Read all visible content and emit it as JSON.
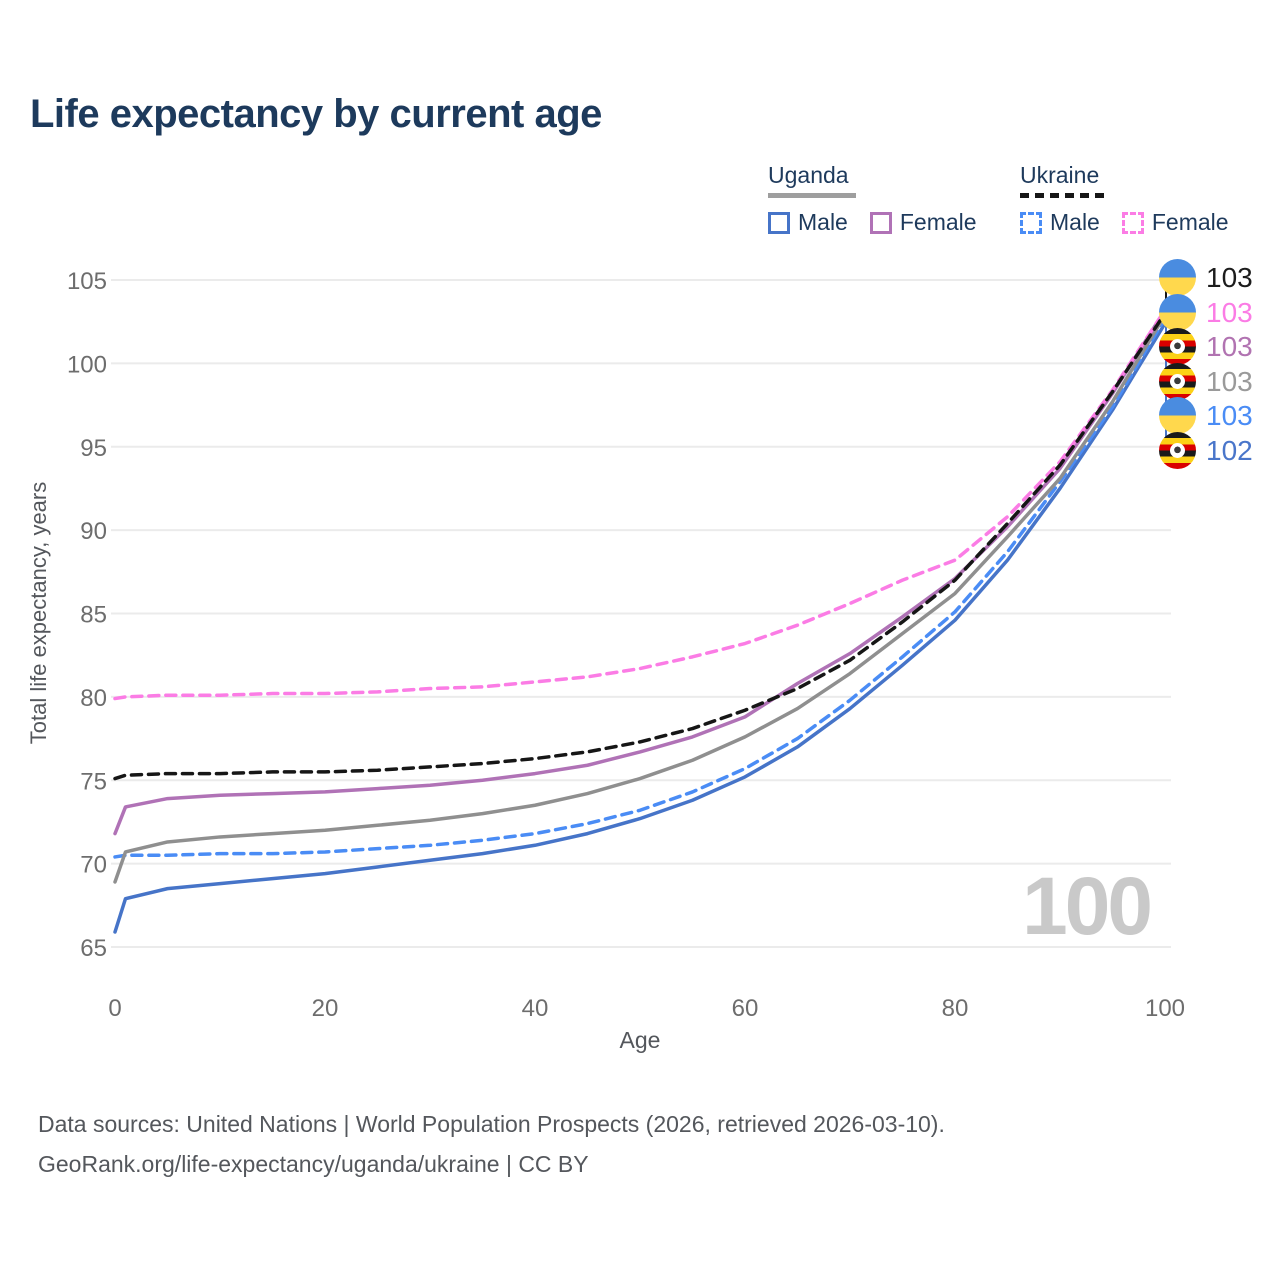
{
  "header": {
    "title": "Life expectancy by current age"
  },
  "legend": {
    "groups": [
      {
        "name": "Uganda",
        "style": "solid",
        "items": [
          {
            "label": "Male",
            "color": "#4674c8"
          },
          {
            "label": "Female",
            "color": "#b072b6"
          }
        ]
      },
      {
        "name": "Ukraine",
        "style": "dashed",
        "items": [
          {
            "label": "Male",
            "color": "#4a8cf5"
          },
          {
            "label": "Female",
            "color": "#fb7ce5"
          }
        ]
      }
    ]
  },
  "flags": {
    "ukraine": {
      "top": "#4a8ce0",
      "bottom": "#ffd84d"
    },
    "uganda": {
      "black": "#1a1a1a",
      "yellow": "#fcd116",
      "red": "#d90000"
    }
  },
  "chart_data": {
    "type": "line",
    "title": "Life expectancy by current age",
    "xlabel": "Age",
    "ylabel": "Total life expectancy, years",
    "xlim": [
      0,
      100
    ],
    "ylim": [
      65,
      105
    ],
    "xticks": [
      0,
      20,
      40,
      60,
      80,
      100
    ],
    "yticks": [
      65,
      70,
      75,
      80,
      85,
      90,
      95,
      100,
      105
    ],
    "grid": "horizontal",
    "legend_position": "top-right",
    "frame_label": "100",
    "x": [
      0,
      1,
      5,
      10,
      15,
      20,
      25,
      30,
      35,
      40,
      45,
      50,
      55,
      60,
      65,
      70,
      75,
      80,
      85,
      90,
      95,
      100
    ],
    "series": [
      {
        "name": "Ukraine Total",
        "country": "Ukraine",
        "sex": "Total",
        "flag": "ukraine",
        "color": "#161616",
        "label_color": "#1c1c1c",
        "dash": "10 7",
        "end_label": "103",
        "values": [
          75.1,
          75.3,
          75.4,
          75.4,
          75.5,
          75.5,
          75.6,
          75.8,
          76.0,
          76.3,
          76.7,
          77.3,
          78.1,
          79.2,
          80.5,
          82.2,
          84.5,
          87.0,
          90.4,
          93.9,
          98.3,
          103.0
        ]
      },
      {
        "name": "Ukraine Female",
        "country": "Ukraine",
        "sex": "Female",
        "flag": "ukraine",
        "color": "#fb7ce5",
        "label_color": "#fb7ce5",
        "dash": "10 7",
        "end_label": "103",
        "values": [
          79.9,
          80.0,
          80.1,
          80.1,
          80.2,
          80.2,
          80.3,
          80.5,
          80.6,
          80.9,
          81.2,
          81.7,
          82.4,
          83.2,
          84.3,
          85.6,
          87.0,
          88.2,
          90.8,
          94.1,
          98.4,
          103.2
        ]
      },
      {
        "name": "Uganda Female",
        "country": "Uganda",
        "sex": "Female",
        "flag": "uganda",
        "color": "#b072b6",
        "label_color": "#b173b1",
        "dash": null,
        "end_label": "103",
        "values": [
          71.8,
          73.4,
          73.9,
          74.1,
          74.2,
          74.3,
          74.5,
          74.7,
          75.0,
          75.4,
          75.9,
          76.7,
          77.6,
          78.8,
          80.8,
          82.6,
          84.8,
          87.1,
          90.2,
          93.7,
          98.2,
          103.2
        ]
      },
      {
        "name": "Uganda Total",
        "country": "Uganda",
        "sex": "Total",
        "flag": "uganda",
        "color": "#8f8f8f",
        "label_color": "#9a9a9a",
        "dash": null,
        "end_label": "103",
        "values": [
          68.9,
          70.7,
          71.3,
          71.6,
          71.8,
          72.0,
          72.3,
          72.6,
          73.0,
          73.5,
          74.2,
          75.1,
          76.2,
          77.6,
          79.3,
          81.4,
          83.8,
          86.2,
          89.6,
          93.1,
          97.7,
          102.9
        ]
      },
      {
        "name": "Ukraine Male",
        "country": "Ukraine",
        "sex": "Male",
        "flag": "ukraine",
        "color": "#4a8cf5",
        "label_color": "#4a8cf5",
        "dash": "10 7",
        "end_label": "103",
        "values": [
          70.4,
          70.5,
          70.5,
          70.6,
          70.6,
          70.7,
          70.9,
          71.1,
          71.4,
          71.8,
          72.4,
          73.2,
          74.3,
          75.7,
          77.5,
          79.8,
          82.4,
          85.1,
          88.7,
          92.9,
          97.4,
          102.7
        ]
      },
      {
        "name": "Uganda Male",
        "country": "Uganda",
        "sex": "Male",
        "flag": "uganda",
        "color": "#4674c8",
        "label_color": "#4a76ca",
        "dash": null,
        "end_label": "102",
        "values": [
          65.9,
          67.9,
          68.5,
          68.8,
          69.1,
          69.4,
          69.8,
          70.2,
          70.6,
          71.1,
          71.8,
          72.7,
          73.8,
          75.2,
          77.0,
          79.3,
          81.9,
          84.6,
          88.2,
          92.5,
          97.2,
          102.4
        ]
      }
    ]
  },
  "footer": {
    "line1": "Data sources: United Nations | World Population Prospects (2026, retrieved 2026-03-10).",
    "line2": "GeoRank.org/life-expectancy/uganda/ukraine | CC BY"
  }
}
